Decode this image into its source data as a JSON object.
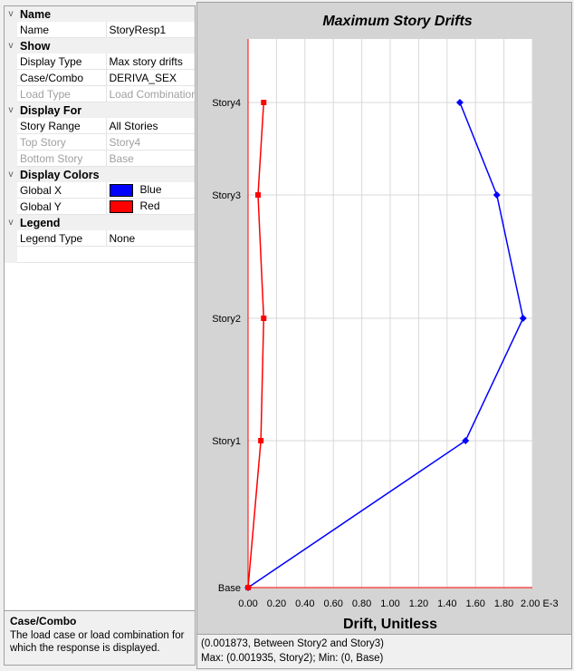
{
  "properties": {
    "categories": [
      {
        "label": "Name",
        "rows": [
          {
            "name": "Name",
            "value": "StoryResp1"
          }
        ]
      },
      {
        "label": "Show",
        "rows": [
          {
            "name": "Display Type",
            "value": "Max story drifts"
          },
          {
            "name": "Case/Combo",
            "value": "DERIVA_SEX"
          },
          {
            "name": "Load Type",
            "value": "Load Combinations",
            "disabled": true
          }
        ]
      },
      {
        "label": "Display For",
        "rows": [
          {
            "name": "Story Range",
            "value": "All Stories"
          },
          {
            "name": "Top Story",
            "value": "Story4",
            "disabled": true
          },
          {
            "name": "Bottom Story",
            "value": "Base",
            "disabled": true
          }
        ]
      },
      {
        "label": "Display Colors",
        "rows": [
          {
            "name": "Global X",
            "value": "Blue",
            "swatch": "#0000ff"
          },
          {
            "name": "Global Y",
            "value": "Red",
            "swatch": "#ff0000"
          }
        ]
      },
      {
        "label": "Legend",
        "rows": [
          {
            "name": "Legend Type",
            "value": "None"
          }
        ]
      }
    ],
    "expander_glyph": "v"
  },
  "description": {
    "title": "Case/Combo",
    "text_line1": "The load case or load combination for",
    "text_line2": "which the response is displayed."
  },
  "status": {
    "line1": "(0.001873, Between Story2 and Story3)",
    "line2": "Max: (0.001935, Story2);   Min: (0, Base)"
  },
  "chart_data": {
    "type": "line",
    "title": "Maximum Story Drifts",
    "xlabel": "Drift, Unitless",
    "x_unit": "E-3",
    "xlim": [
      0,
      2.0
    ],
    "x_ticks": [
      "0.00",
      "0.20",
      "0.40",
      "0.60",
      "0.80",
      "1.00",
      "1.20",
      "1.40",
      "1.60",
      "1.80",
      "2.00 E-3"
    ],
    "stories": [
      "Base",
      "Story1",
      "Story2",
      "Story3",
      "Story4"
    ],
    "grid": true,
    "series": [
      {
        "color": "#0000ff",
        "x": [
          0,
          1.53,
          1.935,
          1.75,
          1.49
        ],
        "y": [
          "Base",
          "Story1",
          "Story2",
          "Story3",
          "Story4"
        ]
      },
      {
        "color": "#ff0000",
        "x": [
          0,
          0.09,
          0.11,
          0.07,
          0.11
        ],
        "y": [
          "Base",
          "Story1",
          "Story2",
          "Story3",
          "Story4"
        ]
      }
    ]
  }
}
